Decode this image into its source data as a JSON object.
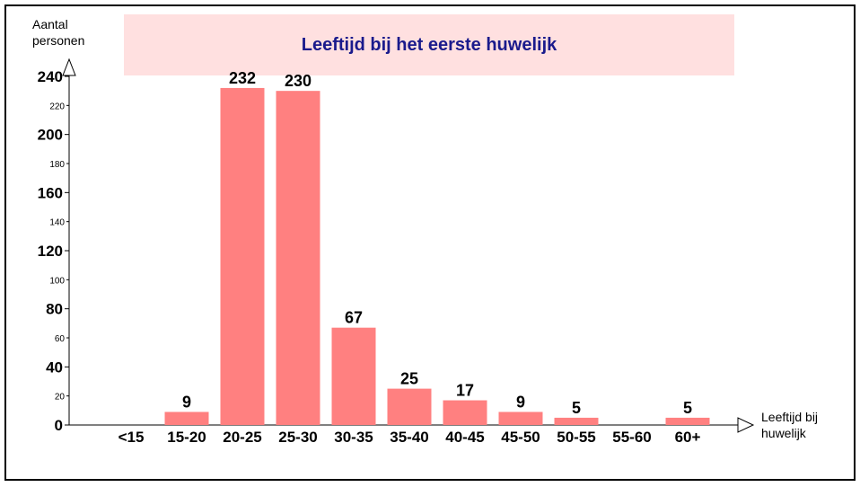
{
  "chart_data": {
    "type": "bar",
    "title": "Leeftijd bij het eerste huwelijk",
    "ylabel": "Aantal personen",
    "xlabel": "Leeftijd bij huwelijk",
    "categories": [
      "<15",
      "15-20",
      "20-25",
      "25-30",
      "30-35",
      "35-40",
      "40-45",
      "45-50",
      "50-55",
      "55-60",
      "60+"
    ],
    "values": [
      0,
      9,
      232,
      230,
      67,
      25,
      17,
      9,
      5,
      0,
      5
    ],
    "value_labels": [
      "",
      "9",
      "232",
      "230",
      "67",
      "25",
      "17",
      "9",
      "5",
      "",
      "5"
    ],
    "ylim": [
      0,
      240
    ],
    "y_ticks_major": [
      "0",
      "40",
      "80",
      "120",
      "160",
      "200",
      "240"
    ],
    "y_ticks_minor": [
      "20",
      "60",
      "100",
      "140",
      "180",
      "220"
    ],
    "bar_color": "#ff8080",
    "title_color": "#1a1a8c",
    "title_background": "#ffe0e0",
    "grid": false
  }
}
